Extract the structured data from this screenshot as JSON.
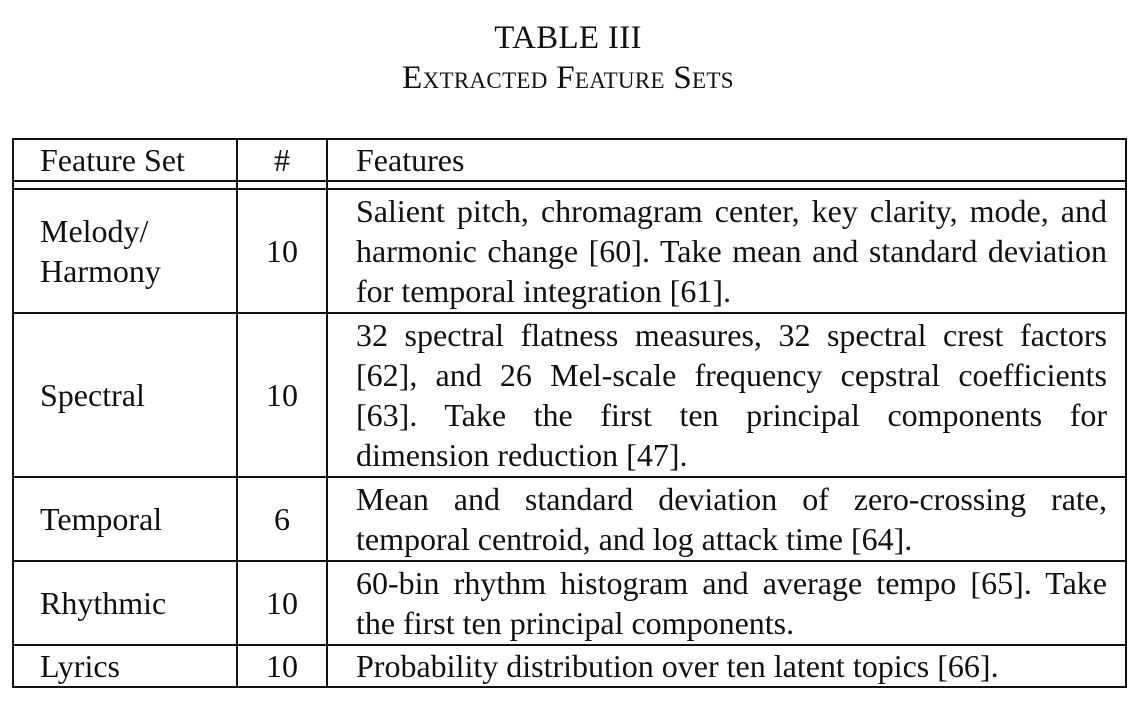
{
  "caption": {
    "label": "TABLE III",
    "title": "Extracted Feature Sets"
  },
  "table": {
    "headers": {
      "set": "Feature Set",
      "count": "#",
      "features": "Features"
    },
    "rows": [
      {
        "set": "Melody/ Harmony",
        "count": "10",
        "features": "Salient pitch, chromagram center, key clarity, mode, and harmonic change [60]. Take mean and standard deviation for temporal integration [61]."
      },
      {
        "set": "Spectral",
        "count": "10",
        "features": "32 spectral flatness measures, 32 spectral crest factors [62], and 26 Mel-scale frequency cepstral coefficients [63]. Take the first ten principal com­ponents for dimension reduction [47]."
      },
      {
        "set": "Temporal",
        "count": "6",
        "features": "Mean and standard deviation of zero-crossing rate, temporal centroid, and log attack time [64]."
      },
      {
        "set": "Rhythmic",
        "count": "10",
        "features": "60-bin rhythm histogram and average tempo [65]. Take the first ten principal components."
      },
      {
        "set": "Lyrics",
        "count": "10",
        "features": "Probability distribution over ten latent topics [66]."
      }
    ]
  }
}
